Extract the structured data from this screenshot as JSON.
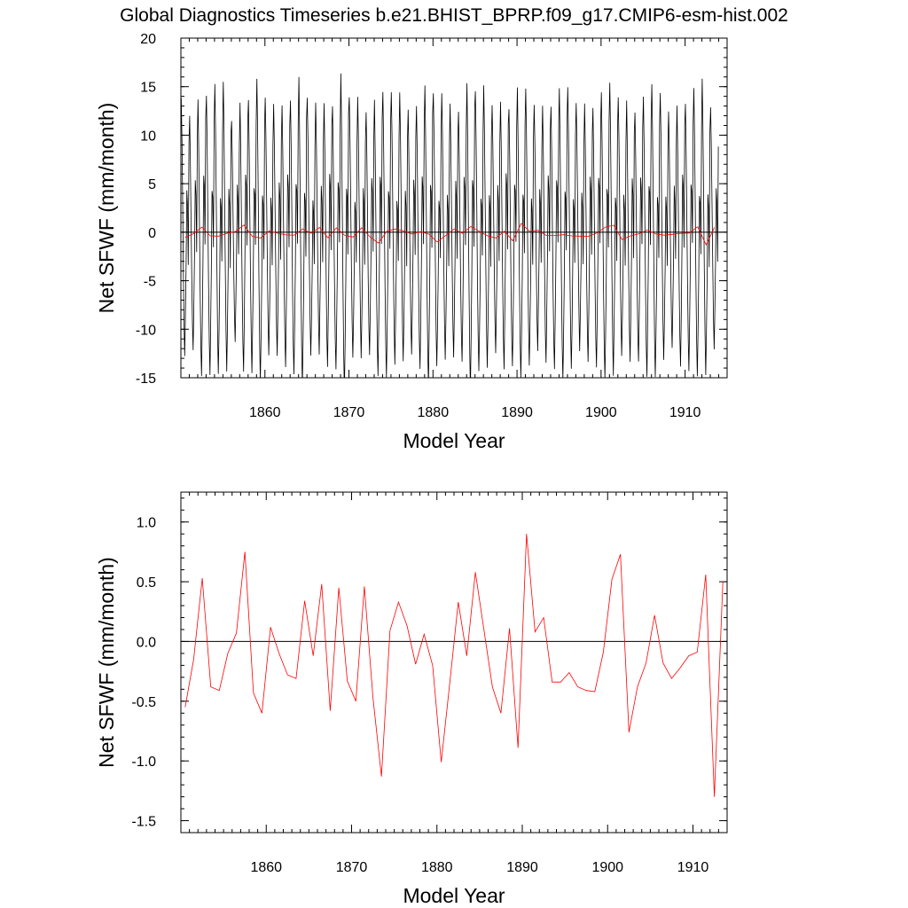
{
  "figure_title": "Global Diagnostics Timeseries b.e21.BHIST_BPRP.f09_g17.CMIP6-esm-hist.002",
  "colors": {
    "monthly": "#000000",
    "annual": "#ff0000",
    "zero_line": "#000000"
  },
  "chart_data": [
    {
      "type": "line",
      "title": "",
      "xlabel": "Model Year",
      "ylabel": "Net SFWF (mm/month)",
      "xlim": [
        1850,
        1915
      ],
      "ylim": [
        -15,
        20
      ],
      "xticks": [
        "1860",
        "1870",
        "1880",
        "1890",
        "1900",
        "1910"
      ],
      "yticks": [
        "20",
        "15",
        "10",
        "5",
        "0",
        "-5",
        "-10",
        "-15"
      ],
      "grid": false,
      "reference_line_y": 0,
      "series": [
        {
          "style": "monthly, black",
          "x_start": 1850.04,
          "x_step": 0.0833333,
          "annual_cycle_climatology": [
            12,
            8,
            2,
            -4,
            -9,
            -12,
            -8,
            -3,
            4,
            3,
            -2,
            9
          ],
          "values_per_year_scale": [
            1.0,
            0.95,
            1.05,
            0.98,
            1.02,
            1.1,
            0.9,
            1.04,
            0.97,
            1.06,
            0.96,
            1.01,
            1.03,
            0.99,
            1.08,
            0.94,
            1.0,
            1.05,
            0.97,
            1.12,
            0.93,
            1.02,
            0.98,
            1.04,
            1.0,
            0.96,
            1.03,
            0.99,
            1.01,
            1.07,
            0.95,
            1.0,
            1.02,
            0.98,
            1.11,
            0.97,
            1.04,
            0.99,
            1.06,
            0.94,
            1.01,
            1.0,
            0.97,
            1.03,
            0.98,
            1.02,
            1.0,
            0.96,
            1.04,
            0.99,
            1.01,
            1.03,
            0.98,
            1.05,
            0.97,
            1.0,
            1.02,
            0.99,
            0.95,
            1.03,
            0.97,
            1.0,
            1.08,
            0.96
          ]
        },
        {
          "style": "annual mean, red",
          "x": [
            1850.5,
            1851.5,
            1852.5,
            1853.5,
            1854.5,
            1855.5,
            1856.5,
            1857.5,
            1858.5,
            1859.5,
            1860.5,
            1861.5,
            1862.5,
            1863.5,
            1864.5,
            1865.5,
            1866.5,
            1867.5,
            1868.5,
            1869.5,
            1870.5,
            1871.5,
            1872.5,
            1873.5,
            1874.5,
            1875.5,
            1876.5,
            1877.5,
            1878.5,
            1879.5,
            1880.5,
            1881.5,
            1882.5,
            1883.5,
            1884.5,
            1885.5,
            1886.5,
            1887.5,
            1888.5,
            1889.5,
            1890.5,
            1891.5,
            1892.5,
            1893.5,
            1894.5,
            1895.5,
            1896.5,
            1897.5,
            1898.5,
            1899.5,
            1900.5,
            1901.5,
            1902.5,
            1903.5,
            1904.5,
            1905.5,
            1906.5,
            1907.5,
            1908.5,
            1909.5,
            1910.5,
            1911.5,
            1912.5,
            1913.5
          ],
          "values": [
            -0.55,
            -0.15,
            0.53,
            -0.38,
            -0.41,
            -0.1,
            0.07,
            0.75,
            -0.43,
            -0.6,
            0.12,
            -0.1,
            -0.28,
            -0.31,
            0.34,
            -0.12,
            0.48,
            -0.58,
            0.45,
            -0.33,
            -0.5,
            0.46,
            -0.47,
            -1.13,
            0.09,
            0.33,
            0.13,
            -0.19,
            0.06,
            -0.2,
            -1.01,
            -0.35,
            0.33,
            -0.12,
            0.58,
            0.1,
            -0.38,
            -0.6,
            0.11,
            -0.89,
            0.9,
            0.08,
            0.2,
            -0.34,
            -0.34,
            -0.26,
            -0.38,
            -0.41,
            -0.42,
            -0.09,
            0.52,
            0.73,
            -0.76,
            -0.38,
            -0.18,
            0.22,
            -0.18,
            -0.31,
            -0.22,
            -0.12,
            -0.09,
            0.56,
            -1.3,
            0.5
          ]
        }
      ]
    },
    {
      "type": "line",
      "title": "",
      "xlabel": "Model Year",
      "ylabel": "Net SFWF (mm/month)",
      "xlim": [
        1850,
        1914
      ],
      "ylim": [
        -1.6,
        1.25
      ],
      "xticks": [
        "1860",
        "1870",
        "1880",
        "1890",
        "1900",
        "1910"
      ],
      "yticks": [
        "1.0",
        "0.5",
        "0.0",
        "-0.5",
        "-1.0",
        "-1.5"
      ],
      "grid": false,
      "reference_line_y": 0,
      "series": [
        {
          "style": "annual mean, red",
          "x": [
            1850.5,
            1851.5,
            1852.5,
            1853.5,
            1854.5,
            1855.5,
            1856.5,
            1857.5,
            1858.5,
            1859.5,
            1860.5,
            1861.5,
            1862.5,
            1863.5,
            1864.5,
            1865.5,
            1866.5,
            1867.5,
            1868.5,
            1869.5,
            1870.5,
            1871.5,
            1872.5,
            1873.5,
            1874.5,
            1875.5,
            1876.5,
            1877.5,
            1878.5,
            1879.5,
            1880.5,
            1881.5,
            1882.5,
            1883.5,
            1884.5,
            1885.5,
            1886.5,
            1887.5,
            1888.5,
            1889.5,
            1890.5,
            1891.5,
            1892.5,
            1893.5,
            1894.5,
            1895.5,
            1896.5,
            1897.5,
            1898.5,
            1899.5,
            1900.5,
            1901.5,
            1902.5,
            1903.5,
            1904.5,
            1905.5,
            1906.5,
            1907.5,
            1908.5,
            1909.5,
            1910.5,
            1911.5,
            1912.5,
            1913.5
          ],
          "values": [
            -0.55,
            -0.15,
            0.53,
            -0.38,
            -0.41,
            -0.1,
            0.07,
            0.75,
            -0.43,
            -0.6,
            0.12,
            -0.1,
            -0.28,
            -0.31,
            0.34,
            -0.12,
            0.48,
            -0.58,
            0.45,
            -0.33,
            -0.5,
            0.46,
            -0.47,
            -1.13,
            0.09,
            0.33,
            0.13,
            -0.19,
            0.06,
            -0.2,
            -1.01,
            -0.35,
            0.33,
            -0.12,
            0.58,
            0.1,
            -0.38,
            -0.6,
            0.11,
            -0.89,
            0.9,
            0.08,
            0.2,
            -0.34,
            -0.34,
            -0.26,
            -0.38,
            -0.41,
            -0.42,
            -0.09,
            0.52,
            0.73,
            -0.76,
            -0.38,
            -0.18,
            0.22,
            -0.18,
            -0.31,
            -0.22,
            -0.12,
            -0.09,
            0.56,
            -1.3,
            0.5
          ]
        }
      ]
    }
  ]
}
